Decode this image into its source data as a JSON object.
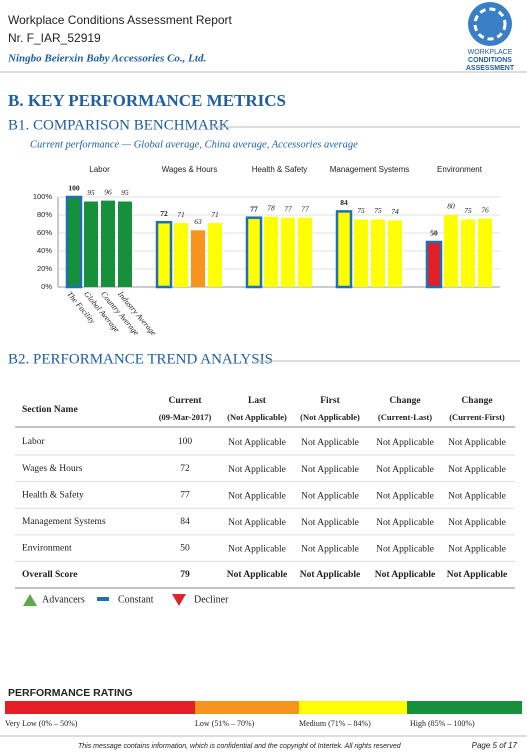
{
  "header": {
    "title": "Workplace Conditions Assessment Report",
    "report_no": "Nr. F_IAR_52919",
    "company": "Ningbo Beierxin Baby Accessories Co., Ltd."
  },
  "logo": {
    "lines": [
      "WORKPLACE",
      "CONDITIONS",
      "ASSESSMENT"
    ]
  },
  "section": {
    "title": "B. KEY PERFORMANCE METRICS"
  },
  "benchmark": {
    "title": "B1. COMPARISON BENCHMARK",
    "subtitle": "Current performance — Global average, China average, Accessories average"
  },
  "chart_data": {
    "type": "bar",
    "categories": [
      "Labor",
      "Wages & Hours",
      "Health & Safety",
      "Management Systems",
      "Environment"
    ],
    "series": [
      {
        "name": "The Facility",
        "colors": [
          "#17903c",
          "#ffff00",
          "#ffff00",
          "#ffff00",
          "#e31e24"
        ],
        "edgecolor": "#1f6fb5",
        "values": [
          100,
          72,
          77,
          84,
          50
        ]
      },
      {
        "name": "Global Average",
        "colors": [
          "#17903c",
          "#ffff00",
          "#ffff00",
          "#ffff00",
          "#ffff00"
        ],
        "values": [
          95,
          71,
          78,
          75,
          80
        ]
      },
      {
        "name": "Country Average",
        "colors": [
          "#17903c",
          "#f7941d",
          "#ffff00",
          "#ffff00",
          "#ffff00"
        ],
        "values": [
          96,
          63,
          77,
          75,
          75
        ]
      },
      {
        "name": "Industry Average",
        "colors": [
          "#17903c",
          "#ffff00",
          "#ffff00",
          "#ffff00",
          "#ffff00"
        ],
        "values": [
          95,
          71,
          77,
          74,
          76
        ]
      }
    ],
    "ylim": [
      0,
      100
    ],
    "yticks": [
      {
        "value": 0,
        "label": "0%"
      },
      {
        "value": 20,
        "label": "20%"
      },
      {
        "value": 40,
        "label": "40%"
      },
      {
        "value": 60,
        "label": "60%"
      },
      {
        "value": 80,
        "label": "80%"
      },
      {
        "value": 100,
        "label": "100%"
      }
    ],
    "grid": true
  },
  "trend": {
    "title": "B2. PERFORMANCE TREND ANALYSIS",
    "table": {
      "header": [
        [
          "Section Name"
        ],
        [
          "Current",
          "(09-Mar-2017)"
        ],
        [
          "Last",
          "(Not Applicable)"
        ],
        [
          "First",
          "(Not Applicable)"
        ],
        [
          "Change",
          "(Current-Last)"
        ],
        [
          "Change",
          "(Current-First)"
        ]
      ],
      "rows": [
        [
          "Labor",
          "100",
          "Not Applicable",
          "Not Applicable",
          "Not Applicable",
          "Not Applicable"
        ],
        [
          "Wages & Hours",
          "72",
          "Not Applicable",
          "Not Applicable",
          "Not Applicable",
          "Not Applicable"
        ],
        [
          "Health & Safety",
          "77",
          "Not Applicable",
          "Not Applicable",
          "Not Applicable",
          "Not Applicable"
        ],
        [
          "Management Systems",
          "84",
          "Not Applicable",
          "Not Applicable",
          "Not Applicable",
          "Not Applicable"
        ],
        [
          "Environment",
          "50",
          "Not Applicable",
          "Not Applicable",
          "Not Applicable",
          "Not Applicable"
        ],
        [
          "Overall Score",
          "79",
          "Not Applicable",
          "Not Applicable",
          "Not Applicable",
          "Not Applicable"
        ]
      ]
    },
    "legend": [
      "Advancers",
      "Constant",
      "Decliner"
    ]
  },
  "rating": {
    "title": "PERFORMANCE RATING",
    "levels": [
      "Very Low (0% – 50%)",
      "Low (51% – 70%)",
      "Medium (71% – 84%)",
      "High (85% – 100%)"
    ]
  },
  "footer": {
    "notice": "This message contains information, which is confidential and the copyright of Intertek. All rights reserved",
    "page": "Page 5 of 17"
  }
}
